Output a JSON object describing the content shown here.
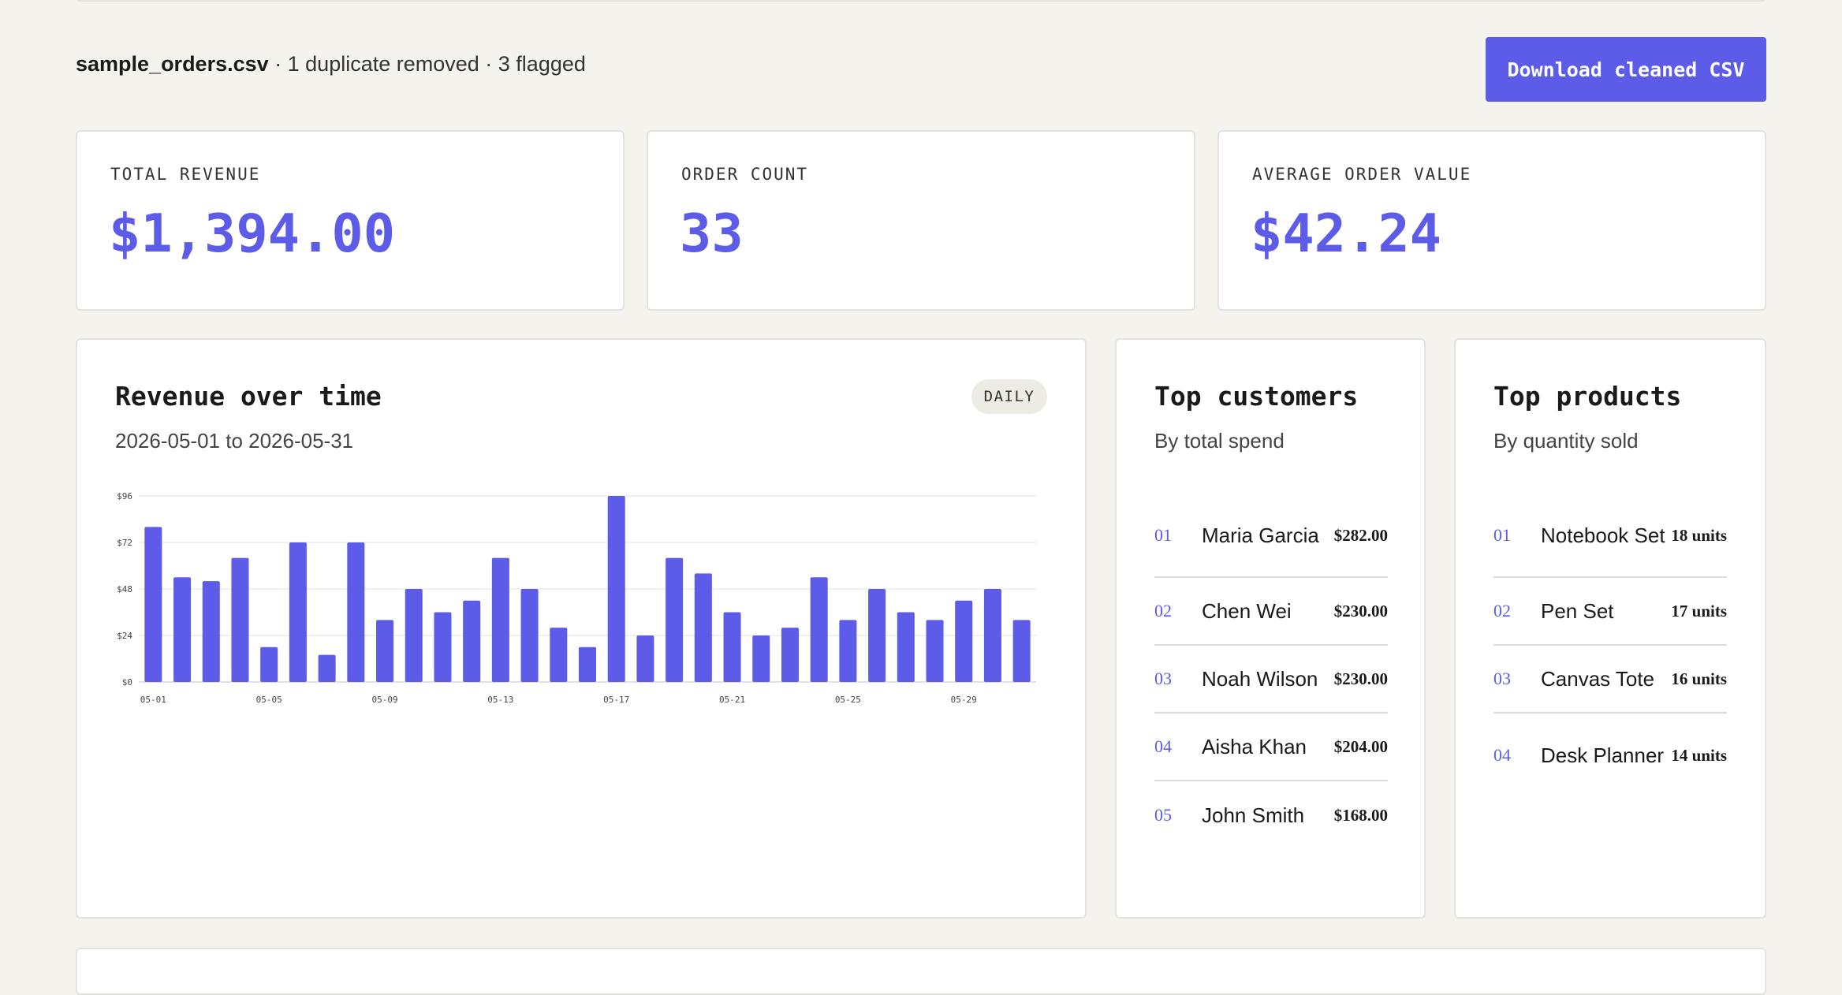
{
  "summary": {
    "filename": "sample_orders.csv",
    "details": " · 1 duplicate removed · 3 flagged"
  },
  "download_button": "Download cleaned CSV",
  "stats": [
    {
      "label": "TOTAL REVENUE",
      "value": "$1,394.00"
    },
    {
      "label": "ORDER COUNT",
      "value": "33"
    },
    {
      "label": "AVERAGE ORDER VALUE",
      "value": "$42.24"
    }
  ],
  "revenue_panel": {
    "title": "Revenue over time",
    "range": "2026-05-01 to 2026-05-31",
    "badge": "DAILY"
  },
  "customers_panel": {
    "title": "Top customers",
    "subtitle": "By total spend",
    "items": [
      {
        "rank": "01",
        "name": "Maria Garcia",
        "value": "$282.00"
      },
      {
        "rank": "02",
        "name": "Chen Wei",
        "value": "$230.00"
      },
      {
        "rank": "03",
        "name": "Noah Wilson",
        "value": "$230.00"
      },
      {
        "rank": "04",
        "name": "Aisha Khan",
        "value": "$204.00"
      },
      {
        "rank": "05",
        "name": "John Smith",
        "value": "$168.00"
      }
    ]
  },
  "products_panel": {
    "title": "Top products",
    "subtitle": "By quantity sold",
    "items": [
      {
        "rank": "01",
        "name": "Notebook Set",
        "value": "18 units"
      },
      {
        "rank": "02",
        "name": "Pen Set",
        "value": "17 units"
      },
      {
        "rank": "03",
        "name": "Canvas Tote",
        "value": "16 units"
      },
      {
        "rank": "04",
        "name": "Desk Planner",
        "value": "14 units"
      }
    ]
  },
  "colors": {
    "accent": "#5c5ce8",
    "background": "#f4f3ee"
  },
  "chart_data": {
    "type": "bar",
    "categories": [
      "05-01",
      "05-02",
      "05-03",
      "05-04",
      "05-05",
      "05-06",
      "05-07",
      "05-08",
      "05-09",
      "05-10",
      "05-11",
      "05-12",
      "05-13",
      "05-14",
      "05-15",
      "05-16",
      "05-17",
      "05-18",
      "05-19",
      "05-20",
      "05-21",
      "05-22",
      "05-23",
      "05-24",
      "05-25",
      "05-26",
      "05-27",
      "05-28",
      "05-29",
      "05-30",
      "05-31"
    ],
    "values": [
      80,
      54,
      52,
      64,
      18,
      72,
      14,
      72,
      32,
      48,
      36,
      42,
      64,
      48,
      28,
      18,
      96,
      24,
      64,
      56,
      36,
      24,
      28,
      54,
      32,
      48,
      36,
      32,
      42,
      48,
      32
    ],
    "x_tick_labels": [
      "05-01",
      "05-05",
      "05-09",
      "05-13",
      "05-17",
      "05-21",
      "05-25",
      "05-29"
    ],
    "y_tick_labels": [
      "$0",
      "$24",
      "$48",
      "$72",
      "$96"
    ],
    "y_ticks": [
      0,
      24,
      48,
      72,
      96
    ],
    "ylim": [
      0,
      96
    ],
    "grid": true
  }
}
